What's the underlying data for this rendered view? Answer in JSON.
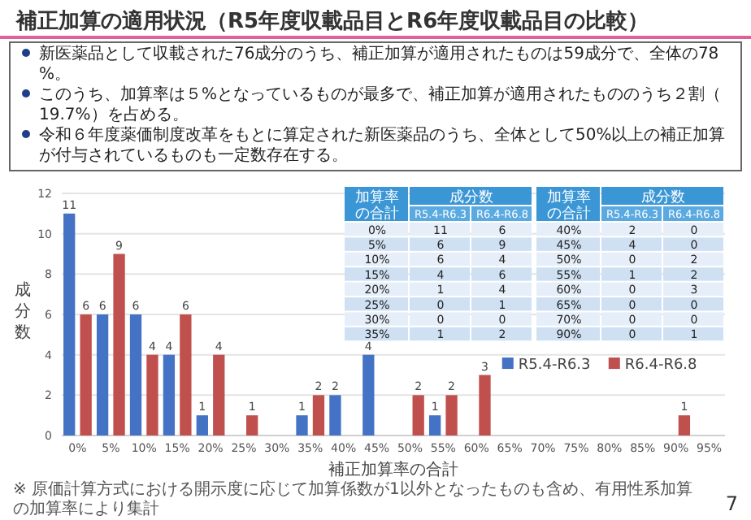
{
  "chart_data": {
    "type": "bar",
    "title": "補正加算の適用状況（R5年度収載品目とR6年度収載品目の比較）",
    "xlabel": "補正加算率の合計",
    "ylabel": "成分数",
    "categories": [
      "0%",
      "5%",
      "10%",
      "15%",
      "20%",
      "25%",
      "30%",
      "35%",
      "40%",
      "45%",
      "50%",
      "55%",
      "60%",
      "65%",
      "70%",
      "75%",
      "80%",
      "85%",
      "90%",
      "95%"
    ],
    "series": [
      {
        "name": "R5.4-R6.3",
        "color": "#4472c4",
        "values": [
          11,
          6,
          6,
          4,
          1,
          0,
          0,
          1,
          2,
          4,
          0,
          1,
          0,
          0,
          0,
          0,
          0,
          0,
          0,
          0
        ],
        "value_labels": [
          "11",
          "6",
          "6",
          "4",
          "1",
          null,
          null,
          "1",
          "2",
          "4",
          null,
          "1",
          null,
          null,
          null,
          null,
          null,
          null,
          null,
          null
        ]
      },
      {
        "name": "R6.4-R6.8",
        "color": "#c0504d",
        "values": [
          6,
          9,
          4,
          6,
          4,
          1,
          0,
          2,
          0,
          0,
          2,
          2,
          3,
          0,
          0,
          0,
          0,
          0,
          1,
          0
        ],
        "value_labels": [
          "6",
          "9",
          "4",
          "6",
          "4",
          "1",
          null,
          "2",
          null,
          null,
          "2",
          "2",
          "3",
          null,
          null,
          null,
          null,
          null,
          "1",
          null
        ]
      }
    ],
    "ylim": [
      0,
      12
    ],
    "yticks": [
      0,
      2,
      4,
      6,
      8,
      10,
      12
    ],
    "grid": "y",
    "legend": "right",
    "annotations": [
      "新医薬品として収載された76成分のうち、補正加算が適用されたものは59成分で、全体の78%。",
      "このうち、加算率は５%となっているものが最多で、補正加算が適用されたもののうち２割（19.7%）を占める。",
      "令和６年度薬価制度改革をもとに算定された新医薬品のうち、全体として50%以上の補正加算が付与されているものも一定数存在する。",
      "※ 原価計算方式における開示度に応じて加算係数が1以外となったものも含め、有用性系加算の加算率により集計",
      "7",
      "加算率の合計",
      "成分数",
      "R5.4-R6.3",
      "R6.4-R6.8",
      "0%",
      "11",
      "6",
      "5%",
      "6",
      "9",
      "10%",
      "6",
      "4",
      "15%",
      "4",
      "6",
      "20%",
      "1",
      "4",
      "25%",
      "0",
      "1",
      "30%",
      "0",
      "0",
      "35%",
      "1",
      "2",
      "40%",
      "2",
      "0",
      "45%",
      "4",
      "0",
      "50%",
      "0",
      "2",
      "55%",
      "1",
      "2",
      "60%",
      "0",
      "3",
      "65%",
      "0",
      "0",
      "70%",
      "0",
      "0",
      "90%",
      "0",
      "1"
    ]
  }
}
